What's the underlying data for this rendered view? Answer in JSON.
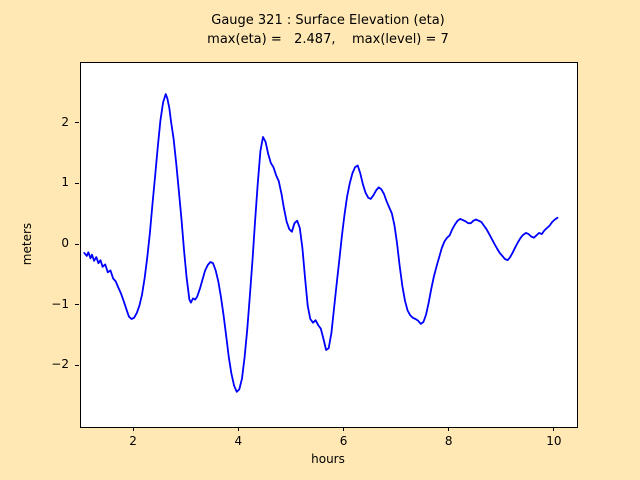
{
  "colors": {
    "figure_bg": "#ffe8b3",
    "plot_bg": "#ffffff",
    "line": "#0000ff",
    "axis": "#000000"
  },
  "chart_data": {
    "type": "line",
    "title": "Gauge 321 : Surface Elevation (eta)",
    "subtitle": "max(eta) =   2.487,    max(level) = 7",
    "max_eta": 2.487,
    "max_level": 7,
    "xlabel": "hours",
    "ylabel": "meters",
    "xlim": [
      0.99,
      10.42
    ],
    "ylim": [
      -3,
      3
    ],
    "grid": false,
    "legend": null,
    "xticks": [
      2,
      4,
      6,
      8,
      10
    ],
    "xtick_labels": [
      "2",
      "4",
      "6",
      "8",
      "10"
    ],
    "yticks": [
      -2,
      -1,
      0,
      1,
      2
    ],
    "ytick_labels": [
      "−2",
      "−1",
      "0",
      "1",
      "2"
    ],
    "series_name": "eta",
    "x": [
      1.05,
      1.1,
      1.13,
      1.17,
      1.2,
      1.24,
      1.28,
      1.32,
      1.36,
      1.4,
      1.45,
      1.5,
      1.55,
      1.6,
      1.65,
      1.7,
      1.75,
      1.8,
      1.85,
      1.9,
      1.95,
      2.0,
      2.05,
      2.1,
      2.15,
      2.2,
      2.25,
      2.3,
      2.35,
      2.4,
      2.45,
      2.5,
      2.55,
      2.6,
      2.63,
      2.67,
      2.7,
      2.75,
      2.8,
      2.85,
      2.9,
      2.95,
      3.0,
      3.05,
      3.08,
      3.12,
      3.16,
      3.2,
      3.25,
      3.3,
      3.35,
      3.4,
      3.45,
      3.5,
      3.55,
      3.6,
      3.65,
      3.7,
      3.75,
      3.8,
      3.85,
      3.9,
      3.95,
      4.0,
      4.05,
      4.1,
      4.15,
      4.2,
      4.25,
      4.3,
      4.35,
      4.4,
      4.45,
      4.5,
      4.55,
      4.6,
      4.65,
      4.7,
      4.75,
      4.8,
      4.85,
      4.9,
      4.95,
      5.0,
      5.05,
      5.1,
      5.15,
      5.2,
      5.25,
      5.3,
      5.35,
      5.4,
      5.45,
      5.5,
      5.55,
      5.6,
      5.65,
      5.7,
      5.75,
      5.8,
      5.85,
      5.9,
      5.95,
      6.0,
      6.05,
      6.1,
      6.15,
      6.2,
      6.25,
      6.3,
      6.35,
      6.4,
      6.45,
      6.5,
      6.55,
      6.6,
      6.65,
      6.7,
      6.75,
      6.8,
      6.85,
      6.9,
      6.95,
      7.0,
      7.05,
      7.1,
      7.15,
      7.2,
      7.25,
      7.3,
      7.35,
      7.4,
      7.45,
      7.5,
      7.55,
      7.6,
      7.65,
      7.7,
      7.75,
      7.8,
      7.85,
      7.9,
      7.95,
      8.0,
      8.05,
      8.1,
      8.15,
      8.2,
      8.25,
      8.3,
      8.35,
      8.4,
      8.45,
      8.5,
      8.55,
      8.6,
      8.65,
      8.7,
      8.75,
      8.8,
      8.85,
      8.9,
      8.95,
      9.0,
      9.05,
      9.1,
      9.15,
      9.2,
      9.25,
      9.3,
      9.35,
      9.4,
      9.45,
      9.5,
      9.55,
      9.6,
      9.65,
      9.7,
      9.75,
      9.8,
      9.85,
      9.9,
      9.95,
      10.0,
      10.05
    ],
    "y": [
      -0.13,
      -0.18,
      -0.12,
      -0.22,
      -0.16,
      -0.26,
      -0.2,
      -0.3,
      -0.25,
      -0.36,
      -0.32,
      -0.45,
      -0.42,
      -0.55,
      -0.6,
      -0.7,
      -0.8,
      -0.92,
      -1.05,
      -1.18,
      -1.22,
      -1.2,
      -1.12,
      -1.0,
      -0.82,
      -0.55,
      -0.2,
      0.2,
      0.68,
      1.15,
      1.62,
      2.05,
      2.35,
      2.487,
      2.42,
      2.25,
      2.05,
      1.75,
      1.35,
      0.9,
      0.42,
      -0.1,
      -0.55,
      -0.9,
      -0.95,
      -0.88,
      -0.9,
      -0.85,
      -0.72,
      -0.57,
      -0.42,
      -0.33,
      -0.28,
      -0.3,
      -0.42,
      -0.6,
      -0.85,
      -1.15,
      -1.5,
      -1.85,
      -2.12,
      -2.32,
      -2.42,
      -2.38,
      -2.2,
      -1.85,
      -1.4,
      -0.85,
      -0.25,
      0.4,
      1.0,
      1.55,
      1.78,
      1.7,
      1.5,
      1.35,
      1.28,
      1.15,
      1.05,
      0.85,
      0.6,
      0.38,
      0.26,
      0.22,
      0.36,
      0.4,
      0.28,
      -0.05,
      -0.55,
      -1.0,
      -1.22,
      -1.28,
      -1.24,
      -1.32,
      -1.38,
      -1.55,
      -1.73,
      -1.7,
      -1.45,
      -1.05,
      -0.65,
      -0.25,
      0.15,
      0.5,
      0.8,
      1.02,
      1.18,
      1.28,
      1.31,
      1.18,
      1.0,
      0.86,
      0.78,
      0.76,
      0.82,
      0.9,
      0.95,
      0.92,
      0.84,
      0.72,
      0.62,
      0.52,
      0.32,
      0.02,
      -0.35,
      -0.68,
      -0.92,
      -1.08,
      -1.16,
      -1.2,
      -1.22,
      -1.25,
      -1.3,
      -1.27,
      -1.15,
      -0.95,
      -0.72,
      -0.52,
      -0.35,
      -0.2,
      -0.05,
      0.06,
      0.12,
      0.16,
      0.26,
      0.34,
      0.4,
      0.43,
      0.41,
      0.39,
      0.36,
      0.36,
      0.4,
      0.42,
      0.4,
      0.38,
      0.32,
      0.26,
      0.18,
      0.1,
      0.02,
      -0.06,
      -0.13,
      -0.18,
      -0.23,
      -0.25,
      -0.2,
      -0.12,
      -0.03,
      0.05,
      0.12,
      0.17,
      0.2,
      0.18,
      0.14,
      0.12,
      0.16,
      0.2,
      0.18,
      0.24,
      0.28,
      0.32,
      0.38,
      0.42,
      0.45
    ]
  }
}
